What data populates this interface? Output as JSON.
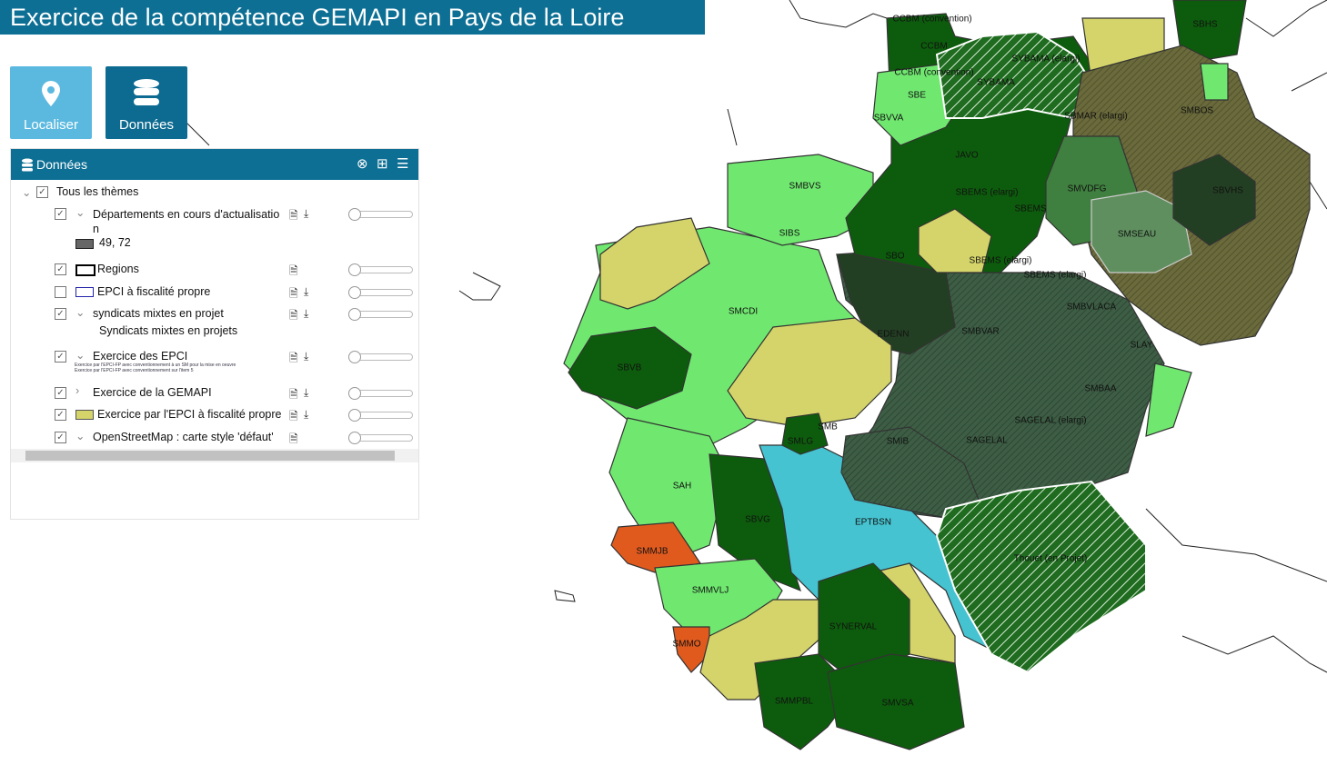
{
  "header": {
    "title": "Exercice de la compétence GEMAPI en Pays de la Loire"
  },
  "buttons": [
    "Localiser",
    "Données"
  ],
  "panel": {
    "title": "Données",
    "root": "Tous les thèmes",
    "layers": [
      {
        "label": "Départements en cours d'actualisation",
        "legend": "49, 72"
      },
      {
        "label": "Regions"
      },
      {
        "label": "EPCI à fiscalité propre"
      },
      {
        "label": "syndicats mixtes en projet",
        "legend": "Syndicats mixtes en projets"
      },
      {
        "label": "Exercice des EPCI",
        "legend_lines": [
          "Exercice par l'EPCI-FP avec conventionnement à un SM pour la mise en oeuvre",
          "Exercice par l'EPCI-FP avec conventionnement sur l'item 5"
        ]
      },
      {
        "label": "Exercice de la GEMAPI"
      },
      {
        "label": "Exercice par l'EPCI à fiscalité propre"
      },
      {
        "label": "OpenStreetMap : carte style 'défaut'"
      }
    ]
  },
  "map": {
    "labels": [
      "CCBM (convention)",
      "CCBM",
      "CCBM (convention)",
      "SYBAMA (elargi)",
      "SYBAMA",
      "SBE",
      "SBVVA",
      "SBHS",
      "SMBOS",
      "SBMAR (elargi)",
      "SMVDFG",
      "SBVHS",
      "JAVO",
      "SBEMS (elargi)",
      "SBEMS",
      "SMSEAU",
      "SBEMS (elargi)",
      "SBEMS (elargi)",
      "SBO",
      "SMBVS",
      "SIBS",
      "SMCDI",
      "EDENN",
      "SMBVAR",
      "SMBVLACA",
      "SLAY",
      "SBVB",
      "SMBAA",
      "SAGELAL (elargi)",
      "SAGELAL",
      "SMB",
      "SMLG",
      "SMIB",
      "SAH",
      "SBVG",
      "EPTBSN",
      "Thouet (en Projet)",
      "SMMJB",
      "SMMVLJ",
      "SYNERVAL",
      "SMMO",
      "SMMPBL",
      "SMVSA"
    ]
  }
}
